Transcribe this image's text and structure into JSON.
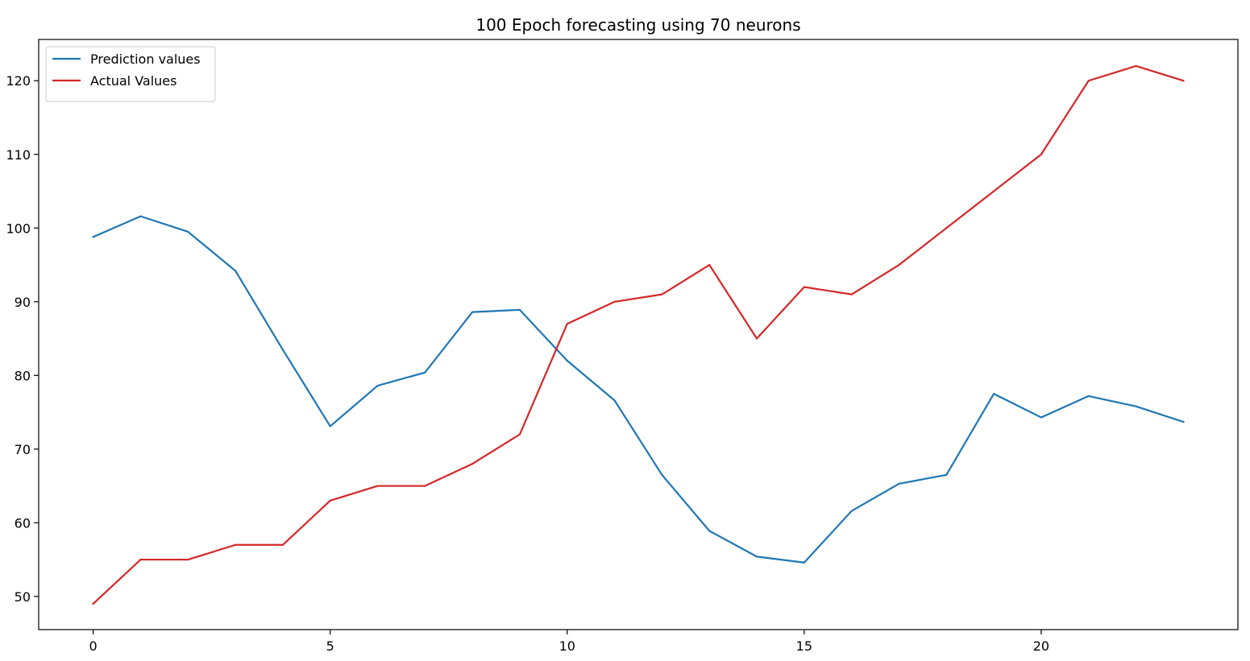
{
  "chart_data": {
    "type": "line",
    "title": "100 Epoch forecasting using 70 neurons",
    "xlabel": "",
    "ylabel": "",
    "xlim": [
      -1.15,
      24.15
    ],
    "ylim": [
      45.5,
      125.6
    ],
    "xticks": [
      0,
      5,
      10,
      15,
      20
    ],
    "yticks": [
      50,
      60,
      70,
      80,
      90,
      100,
      110,
      120
    ],
    "grid": false,
    "legend_position": "top-left",
    "x": [
      0,
      1,
      2,
      3,
      4,
      5,
      6,
      7,
      8,
      9,
      10,
      11,
      12,
      13,
      14,
      15,
      16,
      17,
      18,
      19,
      20,
      21,
      22,
      23
    ],
    "series": [
      {
        "name": "Prediction values",
        "color": "#1f77b4",
        "values": [
          98.8,
          101.6,
          99.5,
          94.2,
          83.5,
          73.1,
          78.6,
          80.4,
          88.6,
          88.9,
          82.0,
          76.6,
          66.5,
          58.9,
          55.4,
          54.6,
          61.6,
          65.3,
          66.5,
          77.5,
          74.3,
          77.2,
          75.8,
          73.7
        ]
      },
      {
        "name": "Actual Values",
        "color": "#d62728",
        "values": [
          49,
          55,
          55,
          57,
          57,
          63,
          65,
          65,
          68,
          72,
          87,
          90,
          91,
          95,
          85,
          92,
          91,
          95,
          100,
          105,
          110,
          120,
          122,
          120
        ]
      }
    ]
  }
}
